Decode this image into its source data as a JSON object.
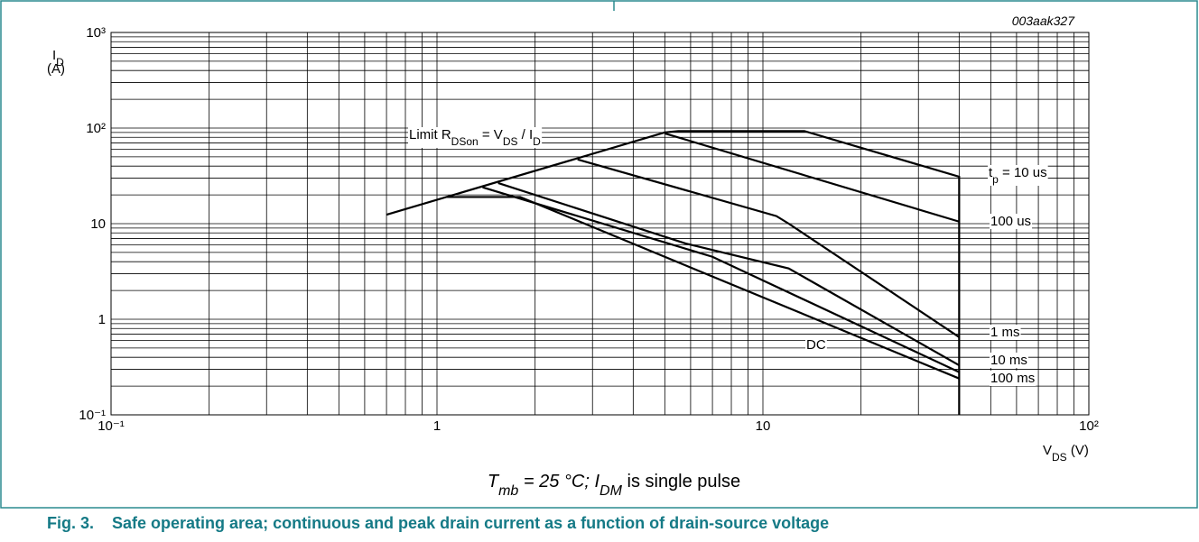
{
  "chart_data": {
    "type": "line",
    "figure_id": "003aak327",
    "y_label": [
      {
        "text": "I"
      },
      {
        "text": "D",
        "sub": true
      }
    ],
    "y_unit": "(A)",
    "x_label": [
      {
        "text": "V"
      },
      {
        "text": "DS",
        "sub": true
      },
      {
        "text": " (V)"
      }
    ],
    "caption": [
      {
        "text": "T",
        "italic": true
      },
      {
        "text": "mb",
        "sub": true,
        "italic": true
      },
      {
        "text": " = 25 °C; ",
        "italic": true
      },
      {
        "text": "I",
        "italic": true
      },
      {
        "text": "DM",
        "sub": true,
        "italic": true
      },
      {
        "text": " is single pulse"
      }
    ],
    "title": "Fig. 3.    Safe operating area; continuous and peak drain current as a function of drain-source voltage",
    "log_x": true,
    "log_y": true,
    "grid": true,
    "xlim": [
      0.1,
      100
    ],
    "ylim": [
      0.1,
      1000
    ],
    "xticks": [
      {
        "value": 0.1,
        "label": "10⁻¹"
      },
      1,
      10,
      {
        "value": 100,
        "label": "10²"
      }
    ],
    "yticks": [
      {
        "value": 0.1,
        "label": "10⁻¹"
      },
      1,
      10,
      {
        "value": 100,
        "label": "10²"
      },
      {
        "value": 1000,
        "label": "10³"
      }
    ],
    "series": [
      {
        "label": [
          {
            "text": "Limit R"
          },
          {
            "text": "DSon",
            "sub": true
          },
          {
            "text": " = V"
          },
          {
            "text": "DS",
            "sub": true
          },
          {
            "text": " / I"
          },
          {
            "text": "D",
            "sub": true
          }
        ],
        "color": "#000000",
        "x": [
          0.7,
          5.0
        ],
        "values": [
          12.4,
          90
        ]
      },
      {
        "label": [
          {
            "text": "t"
          },
          {
            "text": "p",
            "sub": true
          },
          {
            "text": " = 10 us"
          }
        ],
        "color": "#000000",
        "x": [
          5.0,
          5.5,
          13.4,
          40,
          40
        ],
        "values": [
          90,
          93,
          93,
          31,
          0.1
        ]
      },
      {
        "label": [
          {
            "text": "100 us"
          }
        ],
        "color": "#000000",
        "x": [
          5.0,
          40
        ],
        "values": [
          88,
          10.5
        ]
      },
      {
        "label": [
          {
            "text": "1 ms"
          }
        ],
        "color": "#000000",
        "x": [
          2.7,
          11,
          12,
          40
        ],
        "values": [
          47,
          12,
          10,
          0.65
        ]
      },
      {
        "label": [
          {
            "text": "10 ms"
          }
        ],
        "color": "#000000",
        "x": [
          1.54,
          5.8,
          12,
          40
        ],
        "values": [
          26.6,
          6.2,
          3.4,
          0.33
        ]
      },
      {
        "label": [
          {
            "text": "100 ms"
          }
        ],
        "color": "#000000",
        "x": [
          1.38,
          7,
          40
        ],
        "values": [
          24,
          4.5,
          0.28
        ]
      },
      {
        "label": [
          {
            "text": "DC"
          }
        ],
        "color": "#000000",
        "x": [
          1.07,
          1.8,
          40
        ],
        "values": [
          19,
          19,
          0.24
        ]
      }
    ]
  }
}
